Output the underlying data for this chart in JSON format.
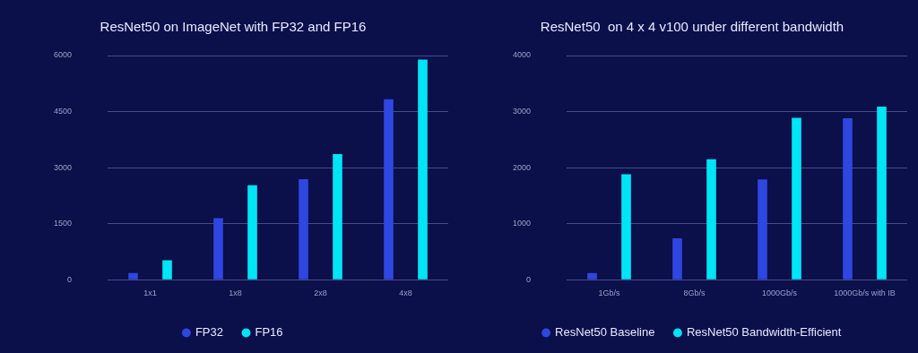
{
  "chart_data": [
    {
      "type": "bar",
      "title": "ResNet50 on ImageNet with FP32 and FP16",
      "categories": [
        "1x1",
        "1x8",
        "2x8",
        "4x8"
      ],
      "series": [
        {
          "name": "FP32",
          "color": "#2f46e0",
          "values": [
            180,
            1650,
            2690,
            4830
          ]
        },
        {
          "name": "FP16",
          "color": "#00e5f5",
          "values": [
            520,
            2530,
            3360,
            5890
          ]
        }
      ],
      "ylim": [
        0,
        6000
      ],
      "yticks": [
        0,
        1500,
        3000,
        4500,
        6000
      ],
      "grid": "y",
      "legend": "bottom"
    },
    {
      "type": "bar",
      "title": "ResNet50  on 4 x 4 v100 under different bandwidth",
      "categories": [
        "1Gb/s",
        "8Gb/s",
        "1000Gb/s",
        "1000Gb/s with IB"
      ],
      "series": [
        {
          "name": "ResNet50 Baseline",
          "color": "#2f46e0",
          "values": [
            120,
            740,
            1790,
            2880
          ]
        },
        {
          "name": "ResNet50 Bandwidth-Efficient",
          "color": "#00e5f5",
          "values": [
            1880,
            2150,
            2890,
            3090
          ]
        }
      ],
      "ylim": [
        0,
        4000
      ],
      "yticks": [
        0,
        1000,
        2000,
        3000,
        4000
      ],
      "grid": "y",
      "legend": "bottom"
    }
  ]
}
